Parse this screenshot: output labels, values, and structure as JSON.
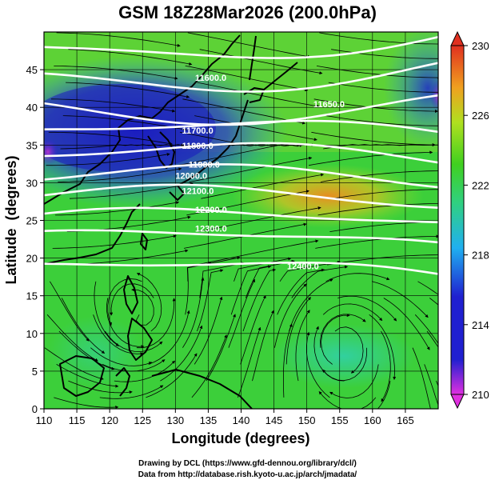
{
  "title": "GSM 18Z28Mar2026 (200.0hPa)",
  "x_axis": {
    "label": "Longitude (degrees)",
    "range": [
      110,
      170
    ],
    "ticks": [
      110,
      115,
      120,
      125,
      130,
      135,
      140,
      145,
      150,
      155,
      160,
      165
    ]
  },
  "y_axis": {
    "label": "Latitude  (degrees)",
    "range": [
      0,
      50
    ],
    "ticks": [
      0,
      5,
      10,
      15,
      20,
      25,
      30,
      35,
      40,
      45
    ]
  },
  "colorbar": {
    "min": 210,
    "max": 230,
    "ticks": [
      210,
      214,
      218,
      222,
      226,
      230
    ],
    "colors": [
      "#e030e0",
      "#2020d0",
      "#20b0f0",
      "#30d080",
      "#40d020",
      "#b0e020",
      "#f0a020",
      "#e03020"
    ]
  },
  "chart_data": {
    "type": "map",
    "field": "temperature shading with geopotential height contours and wind streamlines",
    "contours": [
      {
        "label": "11600.0",
        "lat_at_west": 48.0,
        "lat_at_east": 49.5,
        "label_lon": 133,
        "label_lat": 43.5
      },
      {
        "label": "11650.0",
        "lat_at_west": 44.0,
        "lat_at_east": 45.5,
        "label_lon": 151,
        "label_lat": 40.0
      },
      {
        "label": "11700.0",
        "lat_at_west": 40.0,
        "lat_at_east": 41.0,
        "label_lon": 131,
        "label_lat": 36.5
      },
      {
        "label": "11800.0",
        "lat_at_west": 37.0,
        "lat_at_east": 36.5,
        "label_lon": 131,
        "label_lat": 34.5
      },
      {
        "label": "11900.0",
        "lat_at_west": 34.0,
        "lat_at_east": 33.0,
        "label_lon": 132,
        "label_lat": 32.0
      },
      {
        "label": "12000.0",
        "lat_at_west": 31.0,
        "lat_at_east": 30.0,
        "label_lon": 130,
        "label_lat": 30.5
      },
      {
        "label": "12100.0",
        "lat_at_west": 28.5,
        "lat_at_east": 27.0,
        "label_lon": 131,
        "label_lat": 28.5
      },
      {
        "label": "12200.0",
        "lat_at_west": 25.5,
        "lat_at_east": 24.5,
        "label_lon": 133,
        "label_lat": 26.0
      },
      {
        "label": "12300.0",
        "lat_at_west": 23.0,
        "lat_at_east": 21.5,
        "label_lon": 133,
        "label_lat": 23.5
      },
      {
        "label": "12400.0",
        "lat_at_west": 19.0,
        "lat_at_east": 17.5,
        "label_lon": 147,
        "label_lat": 18.5
      }
    ],
    "temperature_features": [
      {
        "name": "cold-core-west",
        "lon": 117,
        "lat": 37,
        "value": 212.5
      },
      {
        "name": "cold-northeast",
        "lon": 168,
        "lat": 43,
        "value": 213.5
      },
      {
        "name": "warm-band",
        "lon": 154,
        "lat": 31,
        "value": 226.5
      },
      {
        "name": "tropics-ring",
        "lon": 150,
        "lat": 8,
        "value": 221.0
      }
    ]
  },
  "credits": {
    "line1": "Drawing by DCL (https://www.gfd-dennou.org/library/dcl/)",
    "line2": "Data from http://database.rish.kyoto-u.ac.jp/arch/jmadata/"
  }
}
